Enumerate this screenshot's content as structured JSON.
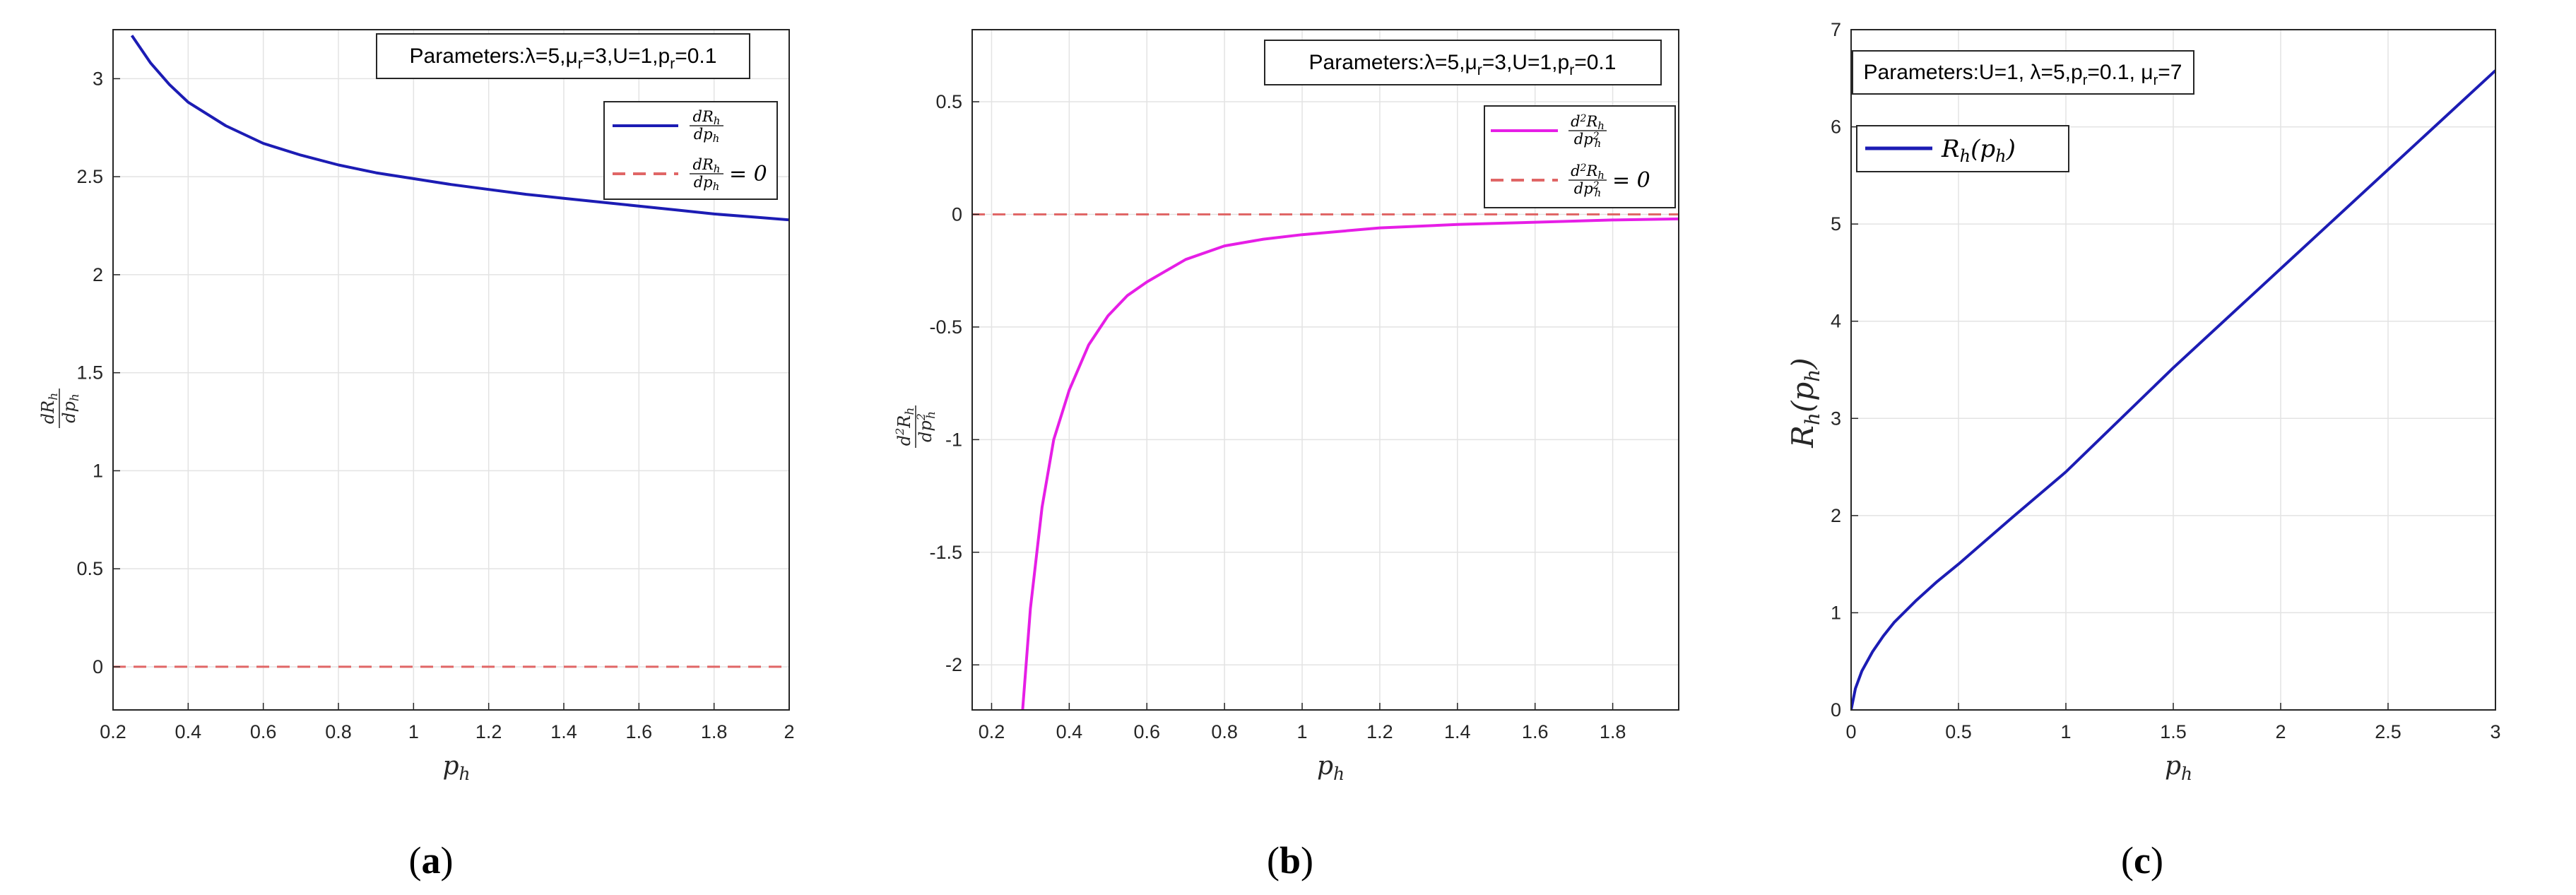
{
  "chart_data": [
    {
      "id": "a",
      "type": "line",
      "panel_label": "a",
      "xlabel": "p_h",
      "ylabel": "dR_h/dp_h",
      "xlim": [
        0.2,
        2
      ],
      "ylim": [
        -0.22,
        3.25
      ],
      "xticks": [
        0.2,
        0.4,
        0.6,
        0.8,
        1,
        1.2,
        1.4,
        1.6,
        1.8,
        2
      ],
      "yticks": [
        0,
        0.5,
        1,
        1.5,
        2,
        2.5,
        3
      ],
      "grid": true,
      "annotation": "Parameters:λ=5,μ_r=3,U=1,p_r=0.1",
      "legend_position": "top-right",
      "series": [
        {
          "name": "dR_h/dp_h",
          "color": "#1c1cb4",
          "style": "solid",
          "x": [
            0.25,
            0.3,
            0.35,
            0.4,
            0.5,
            0.6,
            0.7,
            0.8,
            0.9,
            1.0,
            1.1,
            1.2,
            1.3,
            1.4,
            1.5,
            1.6,
            1.7,
            1.8,
            1.9,
            2.0
          ],
          "y": [
            3.22,
            3.08,
            2.97,
            2.88,
            2.76,
            2.67,
            2.61,
            2.56,
            2.52,
            2.49,
            2.46,
            2.435,
            2.41,
            2.39,
            2.37,
            2.35,
            2.33,
            2.31,
            2.295,
            2.28
          ]
        },
        {
          "name": "dR_h/dp_h = 0",
          "color": "#e06666",
          "style": "dashed",
          "x": [
            0.2,
            2
          ],
          "y": [
            0,
            0
          ]
        }
      ]
    },
    {
      "id": "b",
      "type": "line",
      "panel_label": "b",
      "xlabel": "p_h",
      "ylabel": "d²R_h/dp_h²",
      "xlim": [
        0.15,
        1.97
      ],
      "ylim": [
        -2.2,
        0.82
      ],
      "xticks": [
        0.2,
        0.4,
        0.6,
        0.8,
        1,
        1.2,
        1.4,
        1.6,
        1.8
      ],
      "yticks": [
        -2,
        -1.5,
        -1,
        -0.5,
        0,
        0.5
      ],
      "grid": true,
      "annotation": "Parameters:λ=5,μ_r=3,U=1,p_r=0.1",
      "legend_position": "top-right",
      "series": [
        {
          "name": "d²R_h/dp_h²",
          "color": "#e61ee6",
          "style": "solid",
          "x": [
            0.28,
            0.3,
            0.33,
            0.36,
            0.4,
            0.45,
            0.5,
            0.55,
            0.6,
            0.7,
            0.8,
            0.9,
            1.0,
            1.2,
            1.4,
            1.6,
            1.8,
            1.97
          ],
          "y": [
            -2.2,
            -1.75,
            -1.3,
            -1.0,
            -0.78,
            -0.58,
            -0.45,
            -0.36,
            -0.3,
            -0.2,
            -0.14,
            -0.11,
            -0.09,
            -0.06,
            -0.045,
            -0.035,
            -0.025,
            -0.02
          ]
        },
        {
          "name": "d²R_h/dp_h² = 0",
          "color": "#e06666",
          "style": "dashed",
          "x": [
            0.15,
            1.97
          ],
          "y": [
            0,
            0
          ]
        }
      ]
    },
    {
      "id": "c",
      "type": "line",
      "panel_label": "c",
      "xlabel": "p_h",
      "ylabel": "R_h(p_h)",
      "xlim": [
        0,
        3
      ],
      "ylim": [
        0,
        7
      ],
      "xticks": [
        0,
        0.5,
        1,
        1.5,
        2,
        2.5,
        3
      ],
      "yticks": [
        0,
        1,
        2,
        3,
        4,
        5,
        6,
        7
      ],
      "grid": true,
      "annotation": "Parameters:U=1, λ=5,p_r=0.1, μ_r=7",
      "legend_position": "top-left",
      "series": [
        {
          "name": "R_h(p_h)",
          "color": "#1c1cb4",
          "style": "solid",
          "x": [
            0,
            0.02,
            0.05,
            0.1,
            0.15,
            0.2,
            0.3,
            0.4,
            0.5,
            0.75,
            1.0,
            1.5,
            2.0,
            2.5,
            3.0
          ],
          "y": [
            0,
            0.22,
            0.4,
            0.6,
            0.76,
            0.9,
            1.12,
            1.32,
            1.5,
            1.98,
            2.45,
            3.52,
            4.54,
            5.56,
            6.58
          ]
        }
      ]
    }
  ]
}
